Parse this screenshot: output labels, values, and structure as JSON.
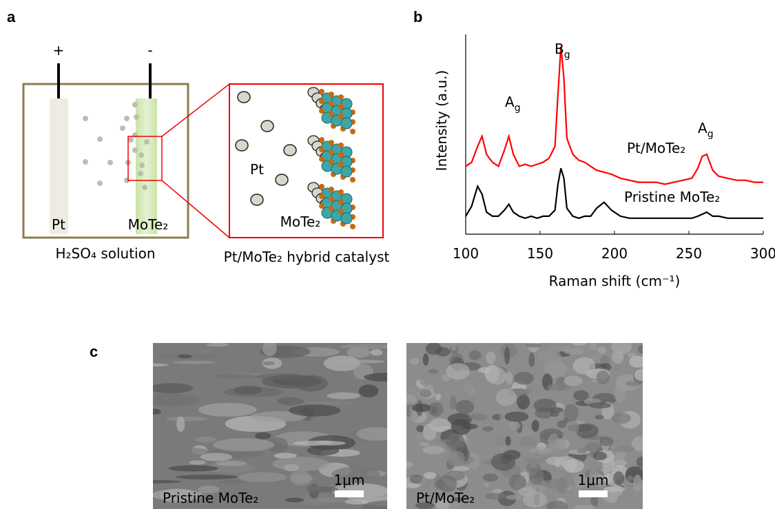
{
  "panel_labels": [
    "a",
    "b",
    "c"
  ],
  "diagram": {
    "plus": "+",
    "minus": "-",
    "electrode_left": "Pt",
    "electrode_right": "MoTe₂",
    "electrolyte": "H₂SO₄ solution",
    "zoom_pt": "Pt",
    "zoom_mote2": "MoTe₂",
    "zoom_caption": "Pt/MoTe₂ hybrid catalyst"
  },
  "chart_data": {
    "type": "line",
    "xlabel": "Raman shift (cm⁻¹)",
    "ylabel": "Intensity (a.u.)",
    "xlim": [
      100,
      300
    ],
    "xticks": [
      100,
      150,
      200,
      250,
      300
    ],
    "ylim": [
      0,
      100
    ],
    "x": [
      100,
      104,
      108,
      111,
      114,
      118,
      122,
      126,
      129,
      132,
      136,
      140,
      144,
      148,
      152,
      156,
      160,
      162,
      164,
      166,
      168,
      172,
      176,
      180,
      184,
      188,
      193,
      198,
      204,
      210,
      216,
      222,
      228,
      234,
      240,
      246,
      252,
      256,
      259,
      262,
      266,
      270,
      276,
      282,
      288,
      294,
      300
    ],
    "series": [
      {
        "name": "Pt/MoTe₂",
        "color": "#ff0000",
        "values": [
          34,
          36,
          44,
          49,
          40,
          36,
          34,
          42,
          49,
          40,
          34,
          35,
          34,
          35,
          36,
          38,
          44,
          70,
          94,
          78,
          48,
          40,
          37,
          36,
          34,
          32,
          31,
          30,
          28,
          27,
          26,
          26,
          26,
          25,
          26,
          27,
          28,
          33,
          39,
          40,
          32,
          29,
          28,
          27,
          27,
          26,
          26
        ]
      },
      {
        "name": "Pristine MoTe₂",
        "color": "#000000",
        "values": [
          9,
          14,
          24,
          20,
          11,
          9,
          9,
          12,
          15,
          11,
          9,
          8,
          9,
          8,
          9,
          9,
          12,
          25,
          33,
          28,
          13,
          9,
          8,
          9,
          9,
          13,
          16,
          12,
          9,
          8,
          8,
          8,
          8,
          8,
          8,
          8,
          8,
          9,
          10,
          11,
          9,
          9,
          8,
          8,
          8,
          8,
          8
        ]
      }
    ],
    "annotations": [
      {
        "text": "B",
        "sub": "g"
      },
      {
        "text": "A",
        "sub": "g"
      },
      {
        "text": "A",
        "sub": "g"
      }
    ]
  },
  "micrographs": [
    {
      "caption": "Pristine MoTe₂",
      "scale_bar": "1μm"
    },
    {
      "caption": "Pt/MoTe₂",
      "scale_bar": "1μm"
    }
  ]
}
